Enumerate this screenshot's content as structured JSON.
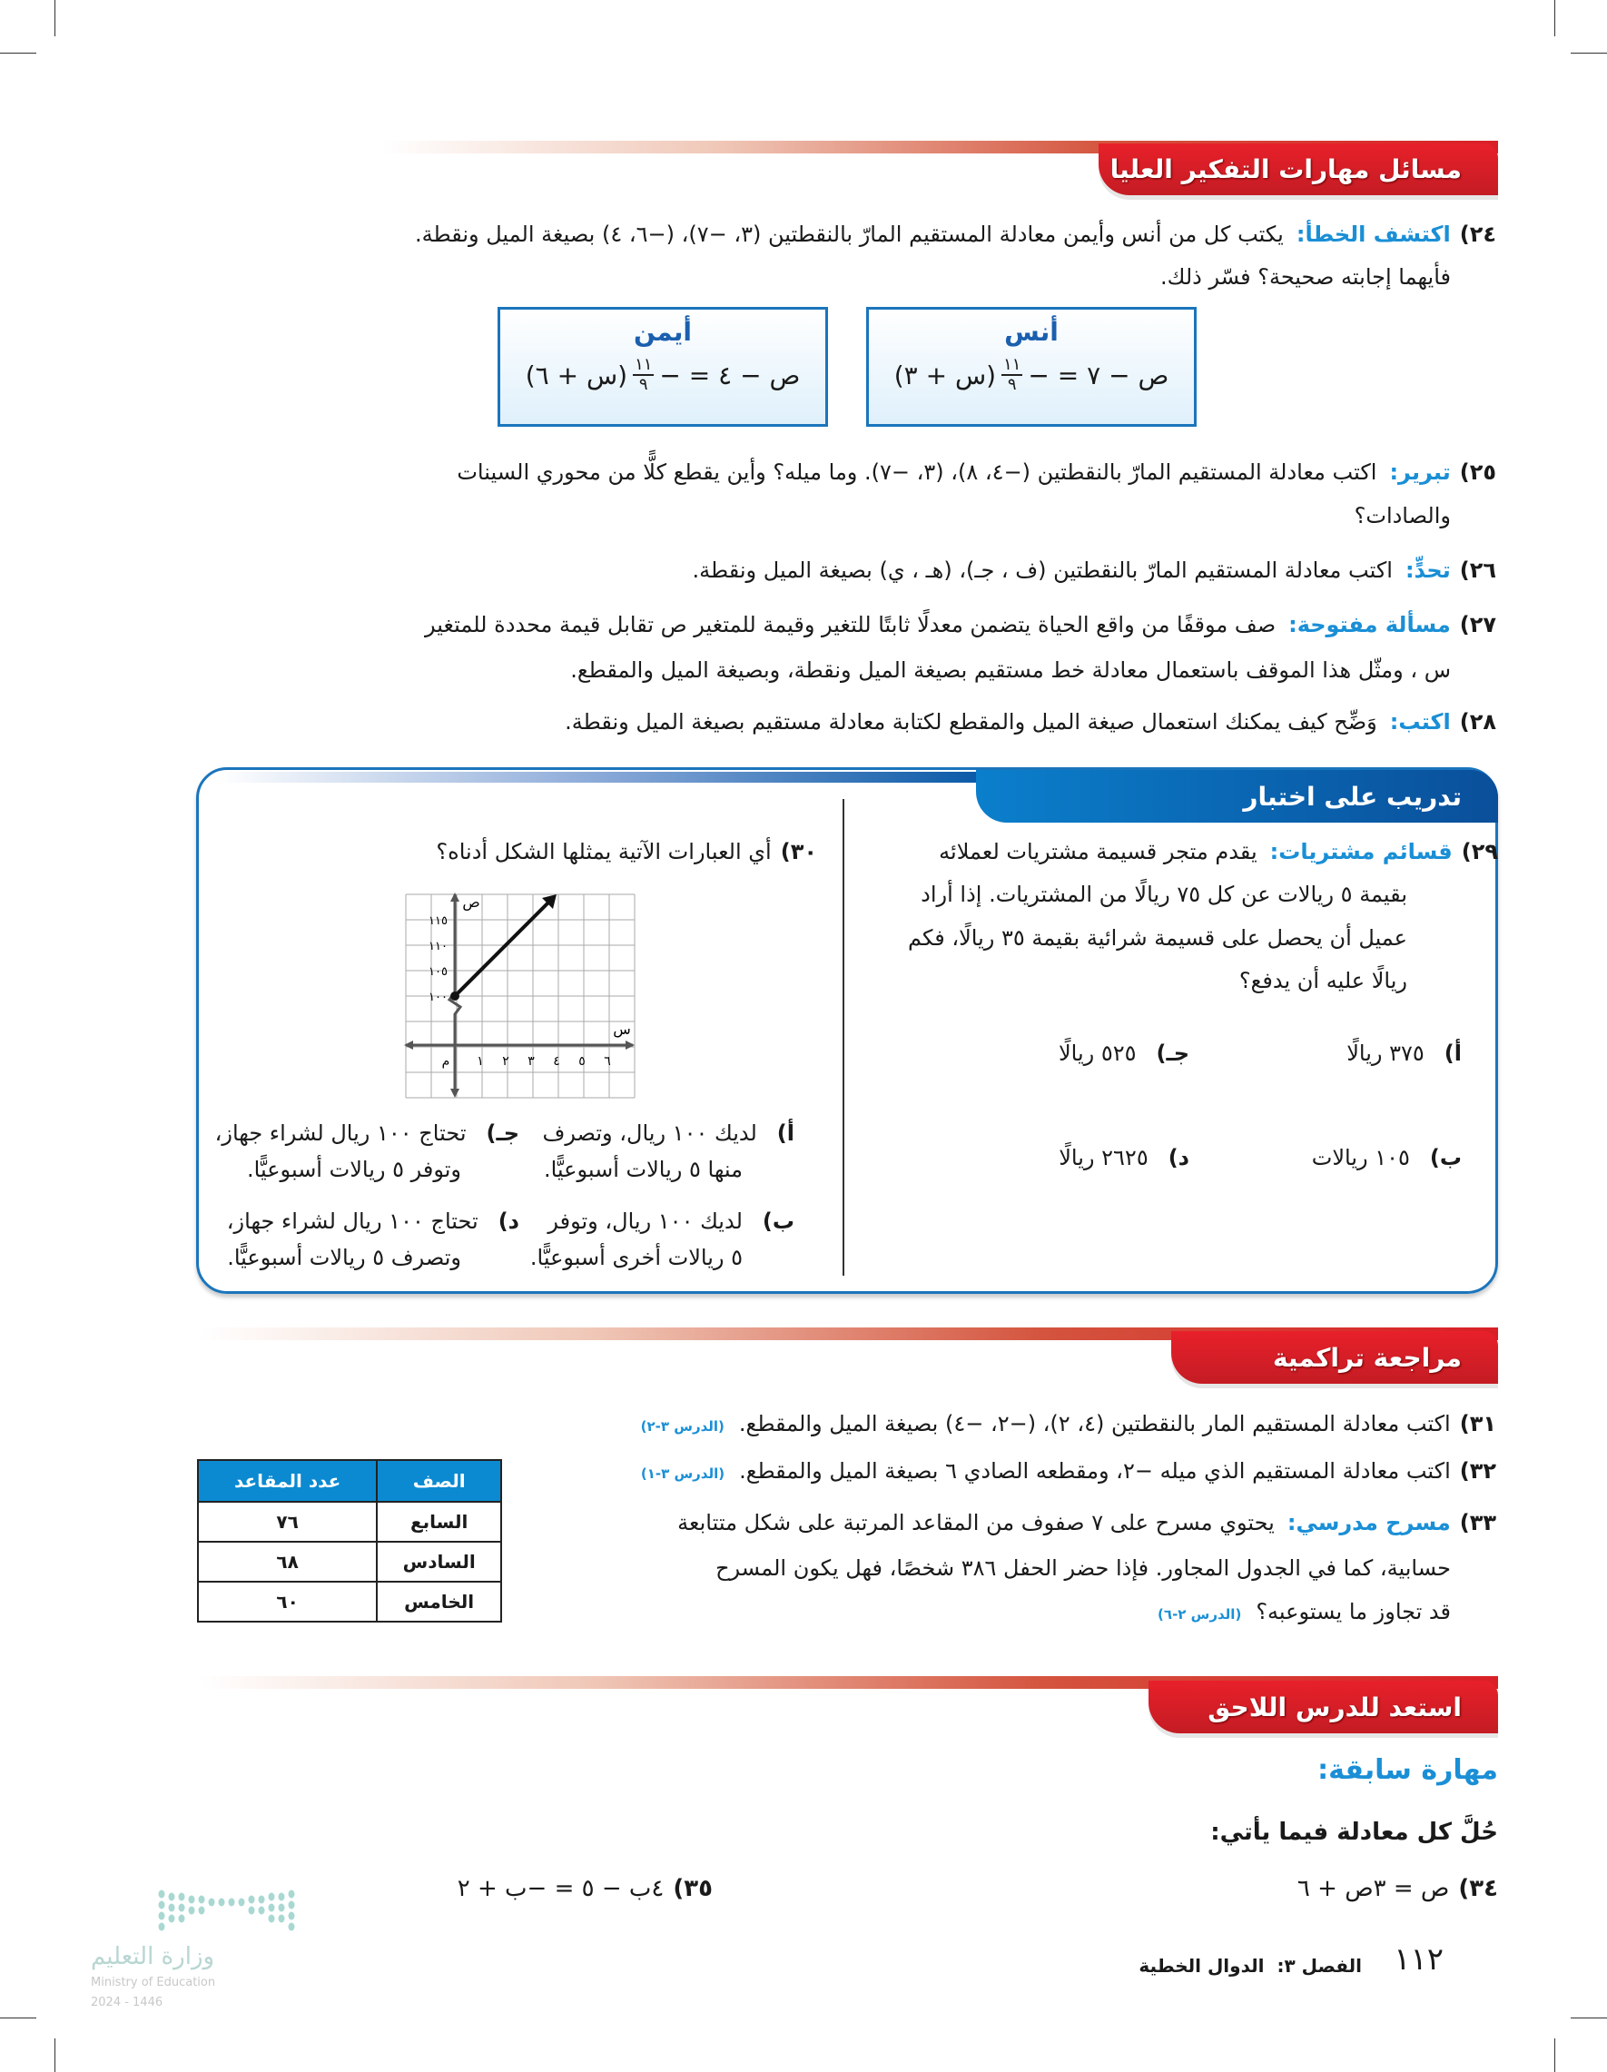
{
  "headers": {
    "hots": "مسائل مهارات التفكير العليا",
    "test_practice": "تدريب على اختبار",
    "spiral_review": "مراجعة تراكمية",
    "get_ready": "استعد للدرس اللاحق"
  },
  "q24": {
    "num": "٢٤)",
    "label": "اكتشف الخطأ:",
    "line1": "يكتب كل من أنس وأيمن معادلة المستقيم المارّ بالنقطتين (٣، −٧)، (−٦، ٤) بصيغة الميل ونقطة.",
    "line2": "فأيهما إجابته صحيحة؟ فسّر ذلك.",
    "anas": {
      "name": "أنس",
      "lhs": "ص − ٧ = −",
      "num": "١١",
      "den": "٩",
      "rhs": "(س + ٣)"
    },
    "ayman": {
      "name": "أيمن",
      "lhs": "ص − ٤ = −",
      "num": "١١",
      "den": "٩",
      "rhs": "(س + ٦)"
    }
  },
  "q25": {
    "num": "٢٥)",
    "label": "تبرير:",
    "line1": "اكتب معادلة المستقيم المارّ بالنقطتين (−٤، ٨)، (٣، −٧). وما ميله؟ وأين يقطع كلًّا من محوري السينات",
    "line2": "والصادات؟"
  },
  "q26": {
    "num": "٢٦)",
    "label": "تحدٍّ:",
    "line1": "اكتب معادلة المستقيم المارّ بالنقطتين (ف ، جـ)، (هـ ، ي) بصيغة الميل ونقطة."
  },
  "q27": {
    "num": "٢٧)",
    "label": "مسألة مفتوحة:",
    "line1": "صف موقفًا من واقع الحياة يتضمن معدلًا ثابتًا للتغير وقيمة للمتغير ص تقابل قيمة محددة للمتغير",
    "line2": "س ، ومثّل هذا الموقف باستعمال معادلة خط مستقيم بصيغة الميل ونقطة، وبصيغة الميل والمقطع."
  },
  "q28": {
    "num": "٢٨)",
    "label": "اكتب:",
    "line1": "وَضِّح كيف يمكنك استعمال صيغة الميل والمقطع لكتابة معادلة مستقيم بصيغة الميل ونقطة."
  },
  "q29": {
    "num": "٢٩)",
    "label": "قسائم مشتريات:",
    "lines": [
      "يقدم متجر قسيمة مشتريات لعملائه",
      "بقيمة ٥ ريالات عن كل ٧٥ ريالًا من المشتريات. إذا أراد",
      "عميل أن يحصل على قسيمة شرائية بقيمة ٣٥ ريالًا، فكم",
      "ريالًا عليه أن يدفع؟"
    ],
    "options": [
      {
        "letter": "أ)",
        "text": "٣٧٥ ريالًا"
      },
      {
        "letter": "ب)",
        "text": "١٠٥ ريالات"
      },
      {
        "letter": "جـ)",
        "text": "٥٢٥ ريالًا"
      },
      {
        "letter": "د)",
        "text": "٢٦٢٥ ريالًا"
      }
    ]
  },
  "q30": {
    "num": "٣٠)",
    "text": "أي العبارات الآتية يمثلها الشكل أدناه؟",
    "graph": {
      "y_axis_label": "ص",
      "x_axis_label": "س",
      "origin_label": "م",
      "y_ticks": [
        "١٠٠",
        "١٠٥",
        "١١٠",
        "١١٥"
      ],
      "x_ticks": [
        "١",
        "٢",
        "٣",
        "٤",
        "٥",
        "٦"
      ],
      "line_start": [
        0,
        100
      ],
      "slope": 5
    },
    "options": [
      {
        "letter": "أ)",
        "l1": "لديك ١٠٠ ريال، وتصرف",
        "l2": "منها ٥ ريالات أسبوعيًّا."
      },
      {
        "letter": "ب)",
        "l1": "لديك ١٠٠ ريال، وتوفر",
        "l2": "٥ ريالات أخرى أسبوعيًّا."
      },
      {
        "letter": "جـ)",
        "l1": "تحتاج ١٠٠ ريال لشراء جهاز،",
        "l2": "وتوفر ٥ ريالات أسبوعيًّا."
      },
      {
        "letter": "د)",
        "l1": "تحتاج ١٠٠ ريال لشراء جهاز،",
        "l2": "وتصرف ٥ ريالات أسبوعيًّا."
      }
    ]
  },
  "q31": {
    "num": "٣١)",
    "text": "اكتب معادلة المستقيم المار بالنقطتين (٤، ٢)، (−٢، −٤) بصيغة الميل والمقطع.",
    "ref": "(الدرس ٣-٢)"
  },
  "q32": {
    "num": "٣٢)",
    "text": "اكتب معادلة المستقيم الذي ميله −٢، ومقطعه الصادي ٦ بصيغة الميل والمقطع.",
    "ref": "(الدرس ٣-١)"
  },
  "q33": {
    "num": "٣٣)",
    "label": "مسرح مدرسي:",
    "line1": "يحتوي مسرح على ٧ صفوف من المقاعد المرتبة على شكل متتابعة",
    "line2": "حسابية، كما في الجدول المجاور. فإذا حضر الحفل ٣٨٦ شخصًا، فهل يكون المسرح",
    "line3": "قد تجاوز ما يستوعبه؟",
    "ref": "(الدرس ٢-٦)"
  },
  "seat_table": {
    "headers": [
      "الصف",
      "عدد المقاعد"
    ],
    "rows": [
      [
        "السابع",
        "٧٦"
      ],
      [
        "السادس",
        "٦٨"
      ],
      [
        "الخامس",
        "٦٠"
      ]
    ]
  },
  "prior_skill": {
    "title": "مهارة سابقة:",
    "instruction": "حُلَّ كل معادلة فيما يأتي:"
  },
  "q34": {
    "num": "٣٤)",
    "text": "ص = ٣ص + ٦"
  },
  "q35": {
    "num": "٣٥)",
    "text": "٤ب − ٥ = −ب + ٢"
  },
  "footer": {
    "page": "١١٢",
    "chapter": "الفصل ٣:",
    "chapter_title": "الدوال الخطية"
  },
  "logo": {
    "ar": "وزارة التعليم",
    "en": "Ministry of Education",
    "year": "2024 - 1446"
  },
  "colors": {
    "red": "#d91f26",
    "blue": "#1b75bc",
    "label_blue": "#1a8fd6",
    "table_header": "#0b8ad1"
  }
}
